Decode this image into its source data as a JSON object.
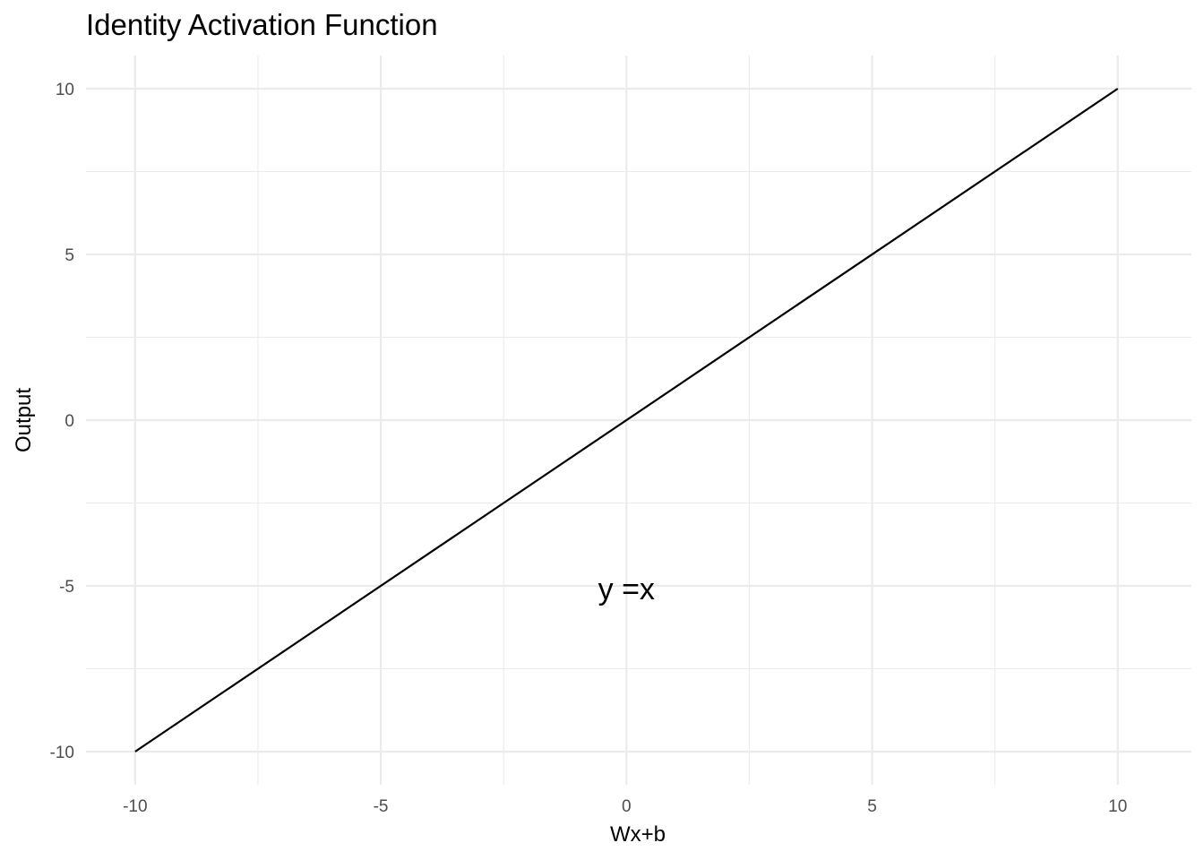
{
  "chart_data": {
    "type": "line",
    "title": "Identity Activation Function",
    "xlabel": "Wx+b",
    "ylabel": "Output",
    "xlim": [
      -11,
      11.5
    ],
    "ylim": [
      -11,
      11
    ],
    "x_ticks": [
      -10,
      -5,
      0,
      5,
      10
    ],
    "x_tick_labels": [
      "-10",
      "-5",
      "0",
      "5",
      "10"
    ],
    "x_minor_ticks": [
      -7.5,
      -2.5,
      2.5,
      7.5
    ],
    "y_ticks": [
      -10,
      -5,
      0,
      5,
      10
    ],
    "y_tick_labels": [
      "-10",
      "-5",
      "0",
      "5",
      "10"
    ],
    "y_minor_ticks": [
      -7.5,
      -2.5,
      2.5,
      7.5
    ],
    "grid": true,
    "series": [
      {
        "x": [
          -10,
          10
        ],
        "y": [
          -10,
          10
        ],
        "color": "#000000"
      }
    ],
    "annotations": [
      {
        "text": "y =x",
        "x": 0,
        "y": -5
      }
    ]
  }
}
